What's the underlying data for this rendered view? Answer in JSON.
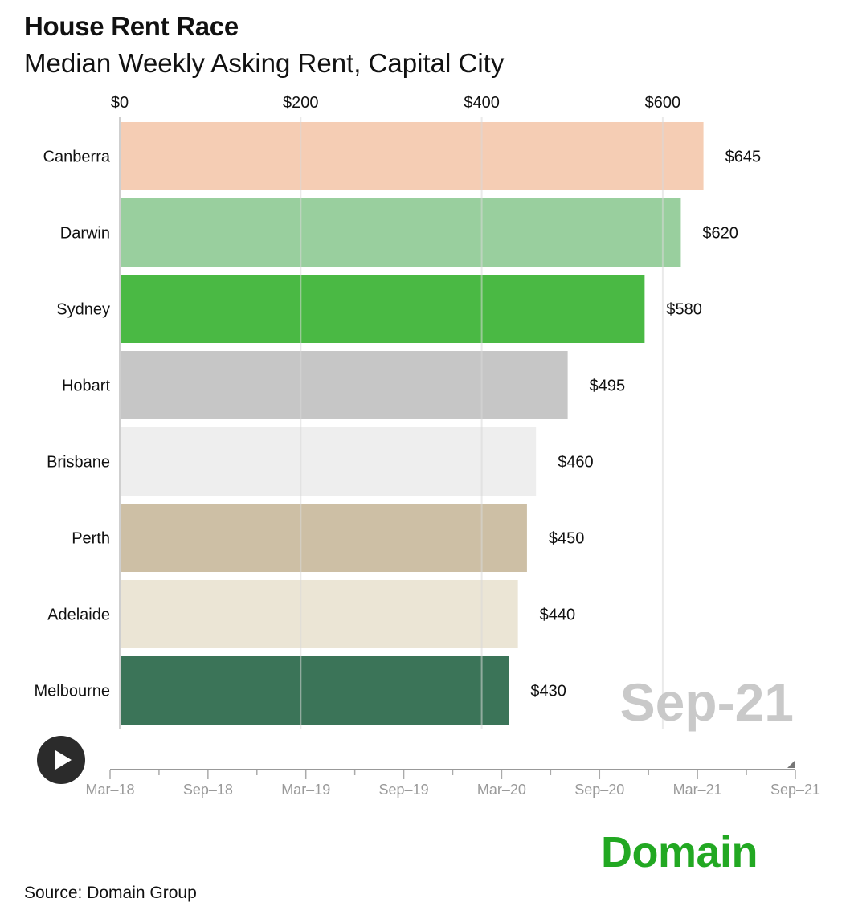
{
  "chart_data": {
    "type": "bar",
    "orientation": "horizontal",
    "title": "House Rent Race",
    "subtitle": "Median Weekly Asking Rent, Capital City",
    "categories": [
      "Canberra",
      "Darwin",
      "Sydney",
      "Hobart",
      "Brisbane",
      "Perth",
      "Adelaide",
      "Melbourne"
    ],
    "values": [
      645,
      620,
      580,
      495,
      460,
      450,
      440,
      430
    ],
    "value_labels": [
      "$645",
      "$620",
      "$580",
      "$495",
      "$460",
      "$450",
      "$440",
      "$430"
    ],
    "colors": [
      "#f5cdb4",
      "#99cf9e",
      "#4ab944",
      "#c6c6c6",
      "#eeeeee",
      "#cdbfa5",
      "#ebe5d5",
      "#3b7458"
    ],
    "xlim": [
      0,
      700
    ],
    "x_ticks": [
      0,
      200,
      400,
      600
    ],
    "x_tick_labels": [
      "$0",
      "$200",
      "$400",
      "$600"
    ],
    "axis_position": "top",
    "grid": true,
    "period_label": "Sep-21"
  },
  "timeline": {
    "labels": [
      "Mar–18",
      "Sep–18",
      "Mar–19",
      "Sep–19",
      "Mar–20",
      "Sep–20",
      "Mar–21",
      "Sep–21"
    ],
    "current": "Sep-21",
    "progress": 1.0
  },
  "controls": {
    "play_icon": "play-icon"
  },
  "brand": "Domain",
  "source": "Source: Domain Group"
}
